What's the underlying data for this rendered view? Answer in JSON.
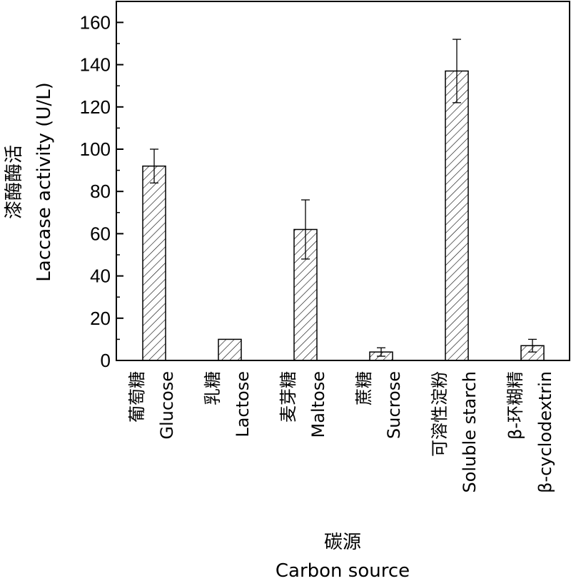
{
  "chart_data": {
    "type": "bar",
    "categories": [
      {
        "zh": "葡萄糖",
        "en": "Glucose"
      },
      {
        "zh": "乳糖",
        "en": "Lactose"
      },
      {
        "zh": "麦芽糖",
        "en": "Maltose"
      },
      {
        "zh": "蔗糖",
        "en": "Sucrose"
      },
      {
        "zh": "可溶性淀粉",
        "en": "Soluble starch"
      },
      {
        "zh": "β-环糊精",
        "en": "β-cyclodextrin"
      }
    ],
    "values": [
      92,
      10,
      62,
      4,
      137,
      7
    ],
    "errors": [
      8,
      0,
      14,
      2,
      15,
      3
    ],
    "ylabel_zh": "漆酶酶活",
    "ylabel_en": "Laccase activity (U/L)",
    "xlabel_zh": "碳源",
    "xlabel_en": "Carbon source",
    "ylim": [
      0,
      170
    ],
    "yticks": [
      0,
      20,
      40,
      60,
      80,
      100,
      120,
      140,
      160
    ],
    "bar_fill": "hatched",
    "grid": false
  }
}
